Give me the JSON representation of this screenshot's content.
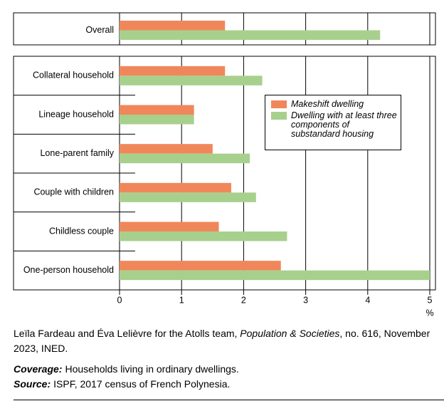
{
  "chart_data": {
    "type": "bar",
    "orientation": "horizontal",
    "categories": [
      "Overall",
      "Collateral household",
      "Lineage household",
      "Lone-parent family",
      "Couple with children",
      "Childless couple",
      "One-person household"
    ],
    "series": [
      {
        "name": "Makeshift dwelling",
        "color": "#f0875a",
        "values": [
          1.7,
          1.7,
          1.2,
          1.5,
          1.8,
          1.6,
          2.6
        ]
      },
      {
        "name": "Dwelling with at least three components of substandard housing",
        "color": "#a8d08d",
        "values": [
          4.2,
          2.3,
          1.2,
          2.1,
          2.2,
          2.7,
          5.0
        ]
      }
    ],
    "xlim": [
      0,
      5
    ],
    "xticks": [
      0,
      1,
      2,
      3,
      4,
      5
    ],
    "x_label": "%",
    "grid": true
  },
  "footer": {
    "credit_start": "Leïla Fardeau and Éva Lelièvre for the Atolls team,",
    "credit_journal": "Population & Societies",
    "credit_end": ", no. 616, November 2023, INED.",
    "coverage_label": "Coverage:",
    "coverage": "Households living in ordinary dwellings.",
    "source_label": "Source:",
    "source": "ISPF, 2017 census of French Polynesia."
  }
}
